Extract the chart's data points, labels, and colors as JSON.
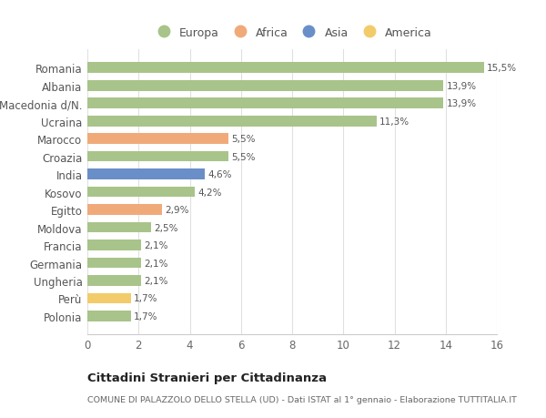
{
  "categories": [
    "Polonia",
    "Perù",
    "Ungheria",
    "Germania",
    "Francia",
    "Moldova",
    "Egitto",
    "Kosovo",
    "India",
    "Croazia",
    "Marocco",
    "Ucraina",
    "Macedonia d/N.",
    "Albania",
    "Romania"
  ],
  "values": [
    1.7,
    1.7,
    2.1,
    2.1,
    2.1,
    2.5,
    2.9,
    4.2,
    4.6,
    5.5,
    5.5,
    11.3,
    13.9,
    13.9,
    15.5
  ],
  "labels": [
    "1,7%",
    "1,7%",
    "2,1%",
    "2,1%",
    "2,1%",
    "2,5%",
    "2,9%",
    "4,2%",
    "4,6%",
    "5,5%",
    "5,5%",
    "11,3%",
    "13,9%",
    "13,9%",
    "15,5%"
  ],
  "colors": [
    "#a8c48a",
    "#f2cc6b",
    "#a8c48a",
    "#a8c48a",
    "#a8c48a",
    "#a8c48a",
    "#f0aa7a",
    "#a8c48a",
    "#6a8fc8",
    "#a8c48a",
    "#f0aa7a",
    "#a8c48a",
    "#a8c48a",
    "#a8c48a",
    "#a8c48a"
  ],
  "continent_colors": {
    "Europa": "#a8c48a",
    "Africa": "#f0aa7a",
    "Asia": "#6a8fc8",
    "America": "#f2cc6b"
  },
  "legend_labels": [
    "Europa",
    "Africa",
    "Asia",
    "America"
  ],
  "title": "Cittadini Stranieri per Cittadinanza",
  "subtitle": "COMUNE DI PALAZZOLO DELLO STELLA (UD) - Dati ISTAT al 1° gennaio - Elaborazione TUTTITALIA.IT",
  "xlim": [
    0,
    16
  ],
  "xticks": [
    0,
    2,
    4,
    6,
    8,
    10,
    12,
    14,
    16
  ],
  "background_color": "#ffffff",
  "bar_height": 0.6,
  "grid_color": "#e0e0e0"
}
